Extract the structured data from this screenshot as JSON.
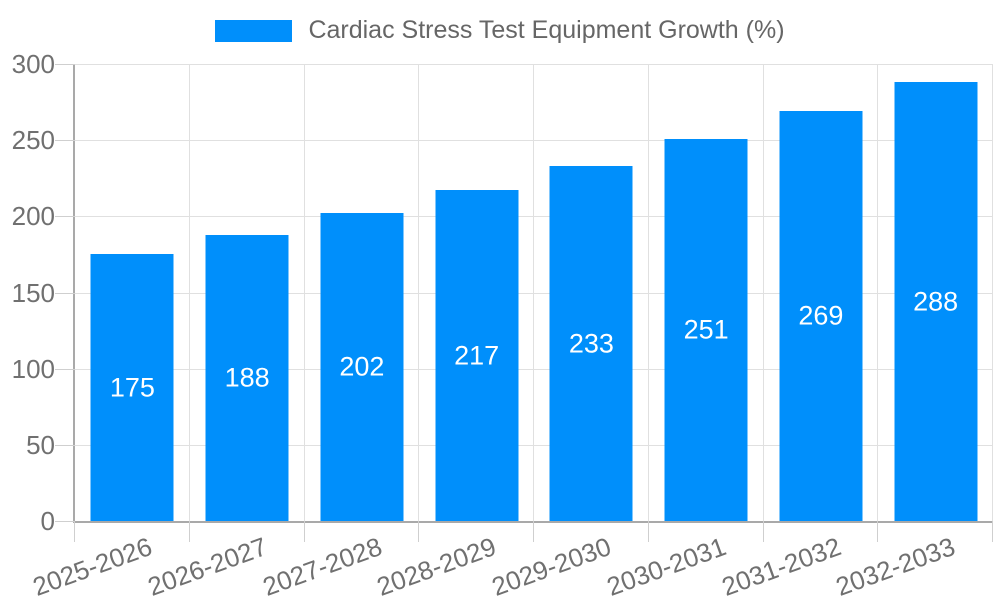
{
  "legend": {
    "label": "Cardiac Stress Test Equipment Growth (%)"
  },
  "chart_data": {
    "type": "bar",
    "title": "Cardiac Stress Test Equipment Growth (%)",
    "categories": [
      "2025-2026",
      "2026-2027",
      "2027-2028",
      "2028-2029",
      "2029-2030",
      "2030-2031",
      "2031-2032",
      "2032-2033"
    ],
    "values": [
      175,
      188,
      202,
      217,
      233,
      251,
      269,
      288
    ],
    "xlabel": "",
    "ylabel": "",
    "ylim": [
      0,
      300
    ],
    "y_ticks": [
      0,
      50,
      100,
      150,
      200,
      250,
      300
    ],
    "grid": true,
    "legend_position": "top",
    "value_label_position": "inside-center"
  },
  "colors": {
    "bar": "#008FFB",
    "grid": "#E0E0E0",
    "tick": "#CFCFCF",
    "axis": "#A9A9A9",
    "axis_text": "#707070",
    "legend_text": "#666666",
    "value_text": "#FFFFFF"
  }
}
